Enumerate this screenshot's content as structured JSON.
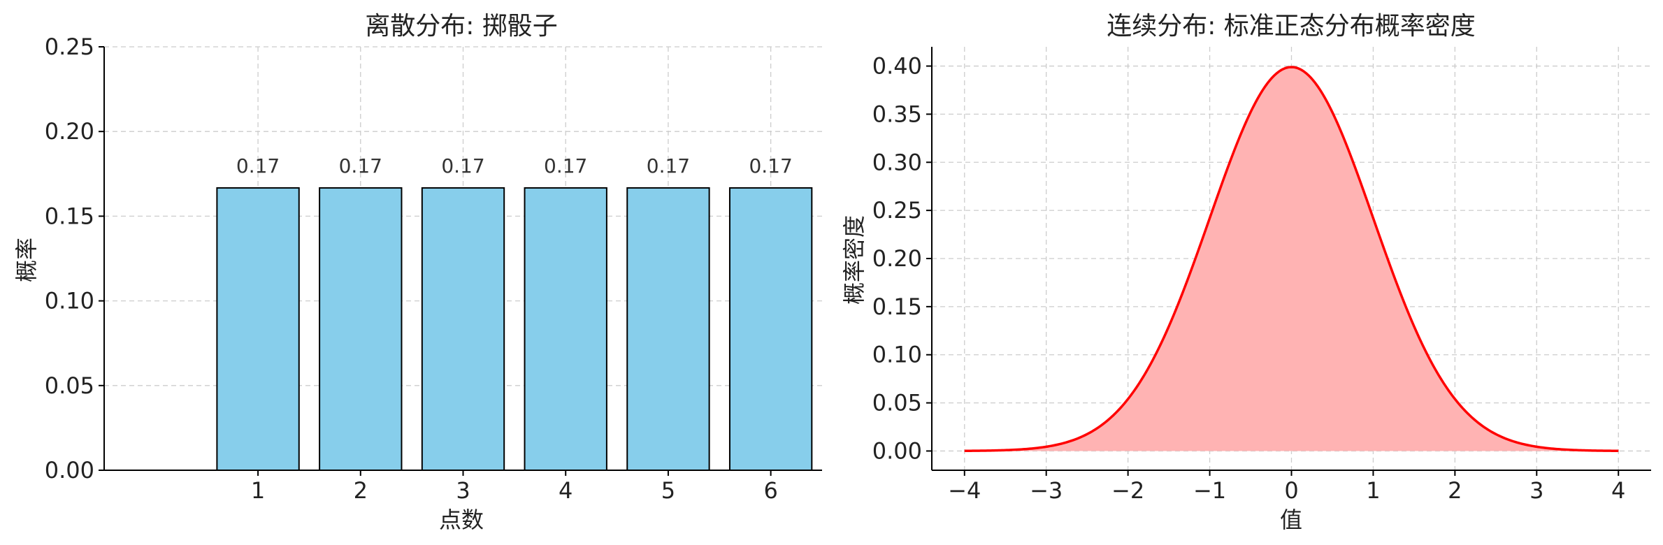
{
  "chart_data": [
    {
      "type": "bar",
      "title": "离散分布: 掷骰子",
      "xlabel": "点数",
      "ylabel": "概率",
      "categories": [
        "1",
        "2",
        "3",
        "4",
        "5",
        "6"
      ],
      "values": [
        0.1667,
        0.1667,
        0.1667,
        0.1667,
        0.1667,
        0.1667
      ],
      "data_labels": [
        "0.17",
        "0.17",
        "0.17",
        "0.17",
        "0.17",
        "0.17"
      ],
      "ylim": [
        0,
        0.25
      ],
      "yticks": [
        "0.00",
        "0.05",
        "0.10",
        "0.15",
        "0.20",
        "0.25"
      ],
      "grid": true,
      "colors": {
        "bar_fill": "#87CEEB",
        "bar_edge": "#000000"
      }
    },
    {
      "type": "area",
      "title": "连续分布: 标准正态分布概率密度",
      "xlabel": "值",
      "ylabel": "概率密度",
      "distribution": "standard normal pdf",
      "xlim": [
        -4,
        4
      ],
      "ylim": [
        0,
        0.4
      ],
      "xticks": [
        "−4",
        "−3",
        "−2",
        "−1",
        "0",
        "1",
        "2",
        "3",
        "4"
      ],
      "yticks": [
        "0.00",
        "0.05",
        "0.10",
        "0.15",
        "0.20",
        "0.25",
        "0.30",
        "0.35",
        "0.40"
      ],
      "grid": true,
      "colors": {
        "line": "#FF0000",
        "fill": "#FFB3B3"
      }
    }
  ]
}
